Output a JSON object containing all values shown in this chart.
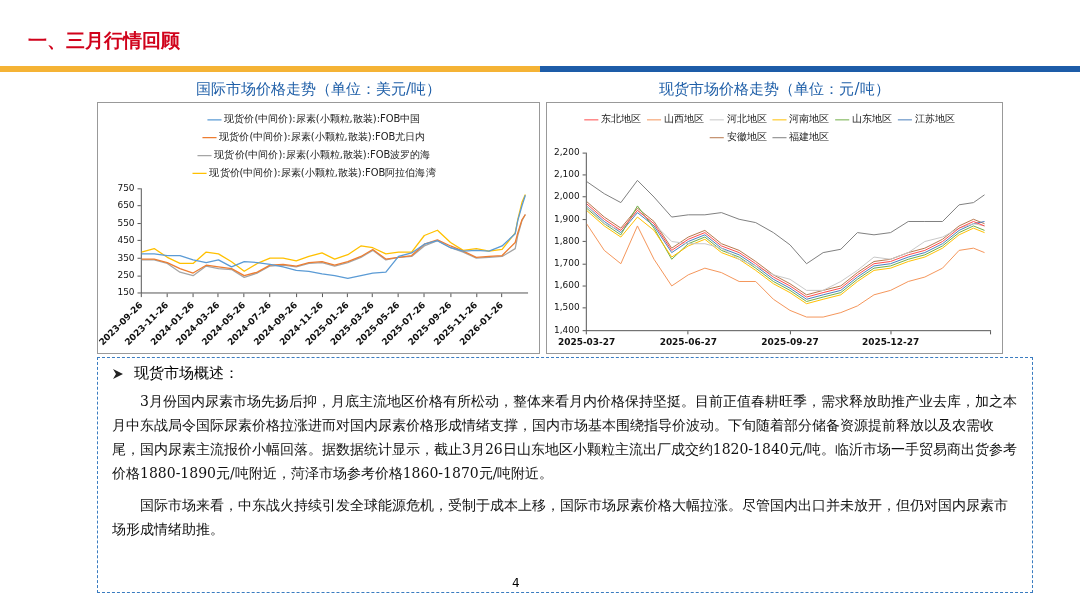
{
  "chart_data": [
    {
      "type": "other",
      "title": "一、三月行情回顾"
    },
    {
      "type": "line",
      "title": "国际市场价格走势（单位：美元/吨）",
      "marker": "none",
      "grid": false,
      "legend": "top",
      "x": [
        "2023-09-26",
        "2023-10-26",
        "2023-11-26",
        "2023-12-26",
        "2024-01-26",
        "2024-02-26",
        "2024-03-26",
        "2024-04-26",
        "2024-05-26",
        "2024-06-26",
        "2024-07-26",
        "2024-08-26",
        "2024-09-26",
        "2024-10-26",
        "2024-11-26",
        "2024-12-26",
        "2025-01-26",
        "2025-02-26",
        "2025-03-26",
        "2025-04-26",
        "2025-05-26",
        "2025-06-26",
        "2025-07-26",
        "2025-08-26",
        "2025-09-26",
        "2025-10-26",
        "2025-11-26",
        "2025-12-26",
        "2026-01-26",
        "2026-02-26",
        "2026-03-04",
        "2026-03-14",
        "2026-03-22"
      ],
      "xlim": [
        "2023-09-26",
        "2026-03-26"
      ],
      "xticks": [
        "2023-09-26",
        "2023-11-26",
        "2024-01-26",
        "2024-03-26",
        "2024-05-26",
        "2024-07-26",
        "2024-09-26",
        "2024-11-26",
        "2025-01-26",
        "2025-03-26",
        "2025-05-26",
        "2025-07-26",
        "2025-09-26",
        "2025-11-26",
        "2026-01-26"
      ],
      "ylim": [
        150,
        750
      ],
      "yticks": [
        150,
        250,
        350,
        450,
        550,
        650,
        750
      ],
      "series": [
        {
          "name": "现货价(中间价):尿素(小颗粒,散装):FOB中国",
          "color": "#5b9bd5",
          "values": [
            375,
            375,
            365,
            365,
            340,
            325,
            340,
            300,
            330,
            325,
            315,
            300,
            280,
            275,
            260,
            250,
            235,
            250,
            265,
            270,
            360,
            380,
            430,
            450,
            410,
            390,
            395,
            390,
            420,
            490,
            565,
            650,
            710
          ]
        },
        {
          "name": "现货价(中间价):尿素(小颗粒,散装):FOB尤日内",
          "color": "#ed7d31",
          "values": [
            345,
            345,
            325,
            290,
            265,
            310,
            300,
            290,
            250,
            270,
            310,
            315,
            305,
            325,
            330,
            310,
            330,
            360,
            400,
            345,
            355,
            365,
            430,
            455,
            420,
            390,
            355,
            360,
            365,
            440,
            495,
            570,
            600
          ]
        },
        {
          "name": "现货价(中间价):尿素(小颗粒,散装):FOB波罗的海",
          "color": "#a5a5a5",
          "values": [
            340,
            340,
            320,
            270,
            250,
            305,
            290,
            285,
            240,
            265,
            305,
            310,
            300,
            320,
            325,
            305,
            325,
            355,
            395,
            340,
            355,
            360,
            420,
            450,
            410,
            385,
            350,
            355,
            360,
            405,
            480,
            565,
            600
          ]
        },
        {
          "name": "现货价(中间价):尿素(小颗粒,散装):FOB阿拉伯海湾",
          "color": "#ffc000",
          "values": [
            385,
            405,
            355,
            320,
            320,
            385,
            375,
            330,
            275,
            320,
            350,
            350,
            335,
            360,
            380,
            345,
            370,
            420,
            410,
            375,
            385,
            385,
            480,
            510,
            440,
            395,
            405,
            390,
            400,
            495,
            570,
            670,
            715
          ]
        }
      ]
    },
    {
      "type": "line",
      "title": "现货市场价格走势（单位：元/吨）",
      "marker": "none",
      "grid": false,
      "legend": "top",
      "x": [
        "2025-03-27",
        "2025-04-12",
        "2025-04-27",
        "2025-05-12",
        "2025-05-27",
        "2025-06-12",
        "2025-06-27",
        "2025-07-12",
        "2025-07-27",
        "2025-08-12",
        "2025-08-27",
        "2025-09-12",
        "2025-09-27",
        "2025-10-12",
        "2025-10-27",
        "2025-11-12",
        "2025-11-27",
        "2025-12-12",
        "2025-12-27",
        "2026-01-12",
        "2026-01-27",
        "2026-02-12",
        "2026-02-27",
        "2026-03-12",
        "2026-03-22"
      ],
      "xlim": [
        "2025-03-27",
        "2026-03-27"
      ],
      "xticks": [
        "2025-03-27",
        "2025-06-27",
        "2025-09-27",
        "2025-12-27",
        {
          "value": "2026-03-27",
          "label": null
        }
      ],
      "ylim": [
        1400,
        2200
      ],
      "yticks": [
        {
          "value": 1400,
          "label": "1,400"
        },
        {
          "value": 1500,
          "label": "1,500"
        },
        {
          "value": 1600,
          "label": "1,600"
        },
        {
          "value": 1700,
          "label": "1,700"
        },
        {
          "value": 1800,
          "label": "1,800"
        },
        {
          "value": 1900,
          "label": "1,900"
        },
        {
          "value": 2000,
          "label": "2,000"
        },
        {
          "value": 2100,
          "label": "2,100"
        },
        {
          "value": 2200,
          "label": "2,200"
        }
      ],
      "series": [
        {
          "name": "东北地区",
          "color": "#ff4b4b",
          "values": [
            1970,
            1900,
            1850,
            1940,
            1880,
            1760,
            1810,
            1840,
            1780,
            1750,
            1700,
            1640,
            1600,
            1550,
            1570,
            1590,
            1650,
            1700,
            1710,
            1740,
            1760,
            1800,
            1860,
            1890,
            1870
          ]
        },
        {
          "name": "山西地区",
          "color": "#f4955a",
          "values": [
            1880,
            1760,
            1700,
            1870,
            1720,
            1600,
            1650,
            1680,
            1660,
            1620,
            1620,
            1540,
            1490,
            1460,
            1460,
            1480,
            1510,
            1560,
            1580,
            1620,
            1640,
            1680,
            1760,
            1770,
            1750
          ]
        },
        {
          "name": "河北地区",
          "color": "#c8c8c8",
          "values": [
            1960,
            1880,
            1850,
            1940,
            1880,
            1800,
            1790,
            1790,
            1770,
            1720,
            1690,
            1650,
            1630,
            1580,
            1580,
            1620,
            1670,
            1730,
            1720,
            1750,
            1800,
            1820,
            1860,
            1880,
            1870
          ]
        },
        {
          "name": "河南地区",
          "color": "#ffc000",
          "values": [
            1940,
            1870,
            1820,
            1910,
            1850,
            1730,
            1780,
            1810,
            1750,
            1720,
            1670,
            1610,
            1570,
            1520,
            1540,
            1560,
            1620,
            1670,
            1680,
            1710,
            1730,
            1770,
            1830,
            1860,
            1840
          ]
        },
        {
          "name": "山东地区",
          "color": "#70ad47",
          "values": [
            1950,
            1880,
            1830,
            1960,
            1860,
            1720,
            1790,
            1820,
            1760,
            1730,
            1680,
            1620,
            1580,
            1530,
            1550,
            1570,
            1630,
            1680,
            1690,
            1720,
            1740,
            1780,
            1840,
            1870,
            1850
          ]
        },
        {
          "name": "江苏地区",
          "color": "#4a7ebb",
          "values": [
            1960,
            1890,
            1840,
            1930,
            1870,
            1750,
            1800,
            1830,
            1770,
            1740,
            1690,
            1630,
            1590,
            1540,
            1560,
            1580,
            1640,
            1690,
            1700,
            1730,
            1750,
            1790,
            1850,
            1880,
            1890
          ]
        },
        {
          "name": "安徽地区",
          "color": "#b5764c",
          "values": [
            1980,
            1910,
            1860,
            1950,
            1890,
            1770,
            1820,
            1850,
            1790,
            1760,
            1710,
            1650,
            1610,
            1560,
            1580,
            1600,
            1660,
            1710,
            1720,
            1750,
            1770,
            1810,
            1870,
            1900,
            1880
          ]
        },
        {
          "name": "福建地区",
          "color": "#7f7f7f",
          "values": [
            2070,
            2015,
            1975,
            2075,
            2000,
            1910,
            1920,
            1920,
            1930,
            1900,
            1885,
            1840,
            1785,
            1700,
            1750,
            1765,
            1840,
            1830,
            1840,
            1890,
            1890,
            1890,
            1965,
            1975,
            2010
          ]
        }
      ]
    },
    {
      "type": "other",
      "title": "现货市场概述：",
      "annotations": [
        "3月份国内尿素市场先扬后抑，月底主流地区价格有所松动，整体来看月内价格保持坚挺。目前正值春耕旺季，需求释放助推产业去库，加之本月中东战局令国际尿素价格拉涨进而对国内尿素价格形成情绪支撑，国内市场基本围绕指导价波动。下旬随着部分储备资源提前释放以及农需收尾，国内尿素主流报价小幅回落。据数据统计显示，截止3月26日山东地区小颗粒主流出厂成交约1820-1840元/吨。临沂市场一手贸易商出货参考价格1880-1890元/吨附近，菏泽市场参考价格1860-1870元/吨附近。",
        "国际市场来看，中东战火持续引发全球能源危机，受制于成本上移，国际市场尿素价格大幅拉涨。尽管国内出口并未放开，但仍对国内尿素市场形成情绪助推。",
        "4"
      ]
    }
  ]
}
